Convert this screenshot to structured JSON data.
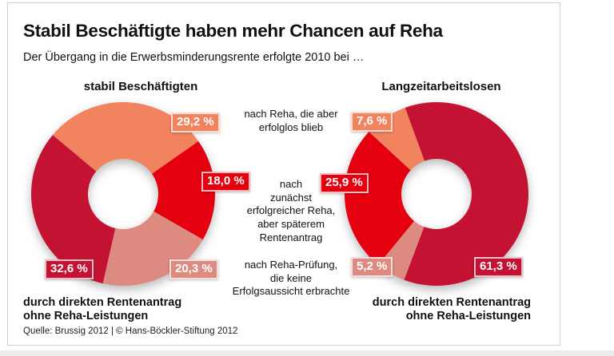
{
  "page": {
    "title": "Stabil Beschäftigte haben mehr Chancen auf Reha",
    "subtitle": "Der Übergang in die Erwerbsminderungsrente erfolgte 2010 bei …",
    "source": "Quelle: Brussig 2012 | © Hans-Böckler-Stiftung 2012"
  },
  "annotations": {
    "reha_erfolglos": "nach Reha, die aber\nerfolglos blieb",
    "reha_erfolgreich": "nach\nzunächst\nerfolgreicher Reha,\naber späterem\nRentenantrag",
    "reha_pruefung": "nach Reha-Prüfung,\ndie keine\nErfolgsaussicht erbrachte",
    "direct_pension_left": "durch direkten Rentenantrag\nohne Reha-Leistungen",
    "direct_pension_right": "durch direkten Rentenantrag\nohne Reha-Leistungen"
  },
  "colors": {
    "salmon": "#F2835F",
    "red": "#E5000F",
    "pink": "#DD8B80",
    "crimson": "#C41233"
  },
  "chart_data": [
    {
      "type": "pie",
      "title": "stabil Beschäftigten",
      "legend_position": "none",
      "grid": false,
      "start_angle": -50,
      "slices": [
        {
          "label": "nach Reha, die aber erfolglos blieb",
          "value": 29.2,
          "display": "29,2 %",
          "color": "#F2835F"
        },
        {
          "label": "nach zunächst erfolgreicher Reha, aber späterem Rentenantrag",
          "value": 18.0,
          "display": "18,0 %",
          "color": "#E5000F"
        },
        {
          "label": "nach Reha-Prüfung, die keine Erfolgsaussicht erbrachte",
          "value": 20.3,
          "display": "20,3 %",
          "color": "#DD8B80"
        },
        {
          "label": "durch direkten Rentenantrag ohne Reha-Leistungen",
          "value": 32.6,
          "display": "32,6 %",
          "color": "#C41233"
        }
      ]
    },
    {
      "type": "pie",
      "title": "Langzeitarbeitslosen",
      "legend_position": "none",
      "grid": false,
      "start_angle": -20,
      "slices": [
        {
          "label": "durch direkten Rentenantrag ohne Reha-Leistungen",
          "value": 61.3,
          "display": "61,3 %",
          "color": "#C41233"
        },
        {
          "label": "nach Reha-Prüfung, die keine Erfolgsaussicht erbrachte",
          "value": 5.2,
          "display": "5,2 %",
          "color": "#DD8B80"
        },
        {
          "label": "nach zunächst erfolgreicher Reha, aber späterem Rentenantrag",
          "value": 25.9,
          "display": "25,9 %",
          "color": "#E5000F"
        },
        {
          "label": "nach Reha, die aber erfolglos blieb",
          "value": 7.6,
          "display": "7,6 %",
          "color": "#F2835F"
        }
      ]
    }
  ]
}
